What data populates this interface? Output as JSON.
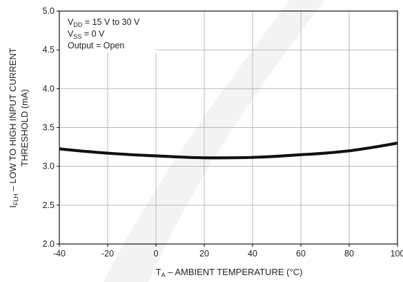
{
  "colors": {
    "background": "#ffffff",
    "watermark": "#f3f3f3",
    "curve": "#111111",
    "grid": "#b8b8b8",
    "axis": "#222222"
  },
  "chart_data": {
    "type": "line",
    "xlabel_main": "T",
    "xlabel_sub": "A",
    "xlabel_rest": " – AMBIENT TEMPERATURE (°C)",
    "ylabel_line1_main": "I",
    "ylabel_line1_sub": "FLH",
    "ylabel_line1_rest": " – LOW TO HIGH INPUT CURRENT",
    "ylabel_line2": "THRESHOLD (mA)",
    "xlim": [
      -40,
      100
    ],
    "ylim": [
      2.0,
      5.0
    ],
    "x_ticks": [
      -40,
      -20,
      0,
      20,
      40,
      60,
      80,
      100
    ],
    "x_tick_labels": [
      "-40",
      "-20",
      "0",
      "20",
      "40",
      "60",
      "80",
      "100"
    ],
    "y_ticks": [
      2.0,
      2.5,
      3.0,
      3.5,
      4.0,
      4.5,
      5.0
    ],
    "y_tick_labels": [
      "2.0",
      "2.5",
      "3.0",
      "3.5",
      "4.0",
      "4.5",
      "5.0"
    ],
    "grid": true,
    "legend_position": "top-left",
    "conditions": [
      {
        "main": "V",
        "sub": "DD",
        "rest": " = 15 V to 30 V"
      },
      {
        "main": "V",
        "sub": "SS",
        "rest": " = 0 V"
      },
      {
        "main": "Output = Open",
        "sub": "",
        "rest": ""
      }
    ],
    "series": [
      {
        "x": [
          -40,
          -30,
          -20,
          -10,
          0,
          10,
          20,
          30,
          40,
          50,
          60,
          70,
          80,
          90,
          100
        ],
        "y": [
          3.225,
          3.195,
          3.17,
          3.15,
          3.135,
          3.12,
          3.11,
          3.11,
          3.115,
          3.13,
          3.15,
          3.17,
          3.2,
          3.245,
          3.3
        ]
      }
    ]
  }
}
